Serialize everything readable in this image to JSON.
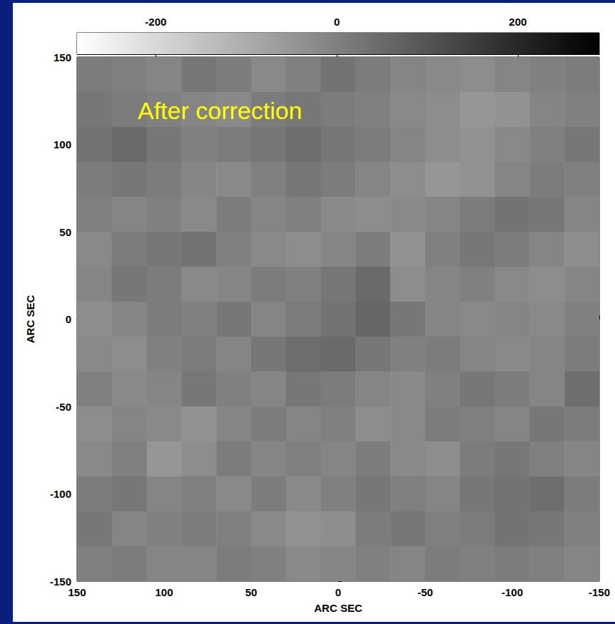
{
  "chart_data": {
    "type": "heatmap",
    "annotation": "After correction",
    "xlabel": "ARC SEC",
    "ylabel": "ARC SEC",
    "xlim": [
      150,
      -150
    ],
    "ylim": [
      -150,
      150
    ],
    "xticks": [
      150,
      100,
      50,
      0,
      -50,
      -100,
      -150
    ],
    "yticks": [
      -150,
      -100,
      -50,
      0,
      50,
      100,
      150
    ],
    "grid": false,
    "x": [
      140,
      120,
      100,
      80,
      60,
      40,
      20,
      0,
      -20,
      -40,
      -60,
      -80,
      -100,
      -120,
      -140
    ],
    "y": [
      140,
      120,
      100,
      80,
      60,
      40,
      20,
      0,
      -20,
      -40,
      -60,
      -80,
      -100,
      -120,
      -140
    ],
    "cells": [
      [
        10,
        0,
        -10,
        20,
        10,
        -20,
        0,
        30,
        10,
        -10,
        -20,
        -30,
        -10,
        0,
        10
      ],
      [
        20,
        10,
        0,
        -10,
        -20,
        10,
        20,
        10,
        0,
        -20,
        -30,
        -50,
        -40,
        -10,
        0
      ],
      [
        30,
        50,
        20,
        0,
        10,
        20,
        40,
        20,
        10,
        -10,
        -30,
        -40,
        -20,
        0,
        20
      ],
      [
        10,
        20,
        10,
        -10,
        -20,
        0,
        20,
        10,
        -10,
        -30,
        -50,
        -40,
        -10,
        10,
        0
      ],
      [
        0,
        -10,
        0,
        -20,
        10,
        -10,
        0,
        -20,
        -30,
        -20,
        -10,
        10,
        30,
        20,
        -10
      ],
      [
        -20,
        10,
        20,
        30,
        0,
        -20,
        -30,
        -10,
        10,
        -40,
        0,
        20,
        10,
        -10,
        -30
      ],
      [
        -10,
        20,
        10,
        -20,
        -10,
        10,
        0,
        20,
        50,
        -30,
        -10,
        0,
        -20,
        -30,
        -10
      ],
      [
        -30,
        -10,
        10,
        0,
        20,
        -10,
        10,
        30,
        60,
        20,
        -10,
        -20,
        -10,
        -20,
        0
      ],
      [
        -20,
        -30,
        0,
        10,
        -10,
        20,
        40,
        50,
        20,
        0,
        10,
        -10,
        -20,
        -10,
        10
      ],
      [
        0,
        -20,
        -10,
        20,
        0,
        -10,
        20,
        10,
        -10,
        -20,
        0,
        20,
        10,
        -10,
        40
      ],
      [
        -30,
        -10,
        -20,
        -40,
        -10,
        10,
        -10,
        0,
        -30,
        -20,
        10,
        0,
        -10,
        20,
        10
      ],
      [
        -20,
        0,
        -50,
        -30,
        10,
        -10,
        0,
        -10,
        10,
        -20,
        -30,
        10,
        20,
        0,
        -10
      ],
      [
        10,
        20,
        -10,
        0,
        -20,
        10,
        -20,
        0,
        20,
        0,
        -10,
        20,
        30,
        40,
        10
      ],
      [
        20,
        -10,
        0,
        10,
        0,
        -20,
        -40,
        -30,
        10,
        20,
        0,
        10,
        30,
        20,
        0
      ],
      [
        0,
        10,
        -10,
        -10,
        10,
        0,
        -20,
        -10,
        0,
        -10,
        10,
        0,
        10,
        0,
        -10
      ]
    ],
    "colorbar_range": [
      -287,
      290
    ],
    "colorbar_ticks": [
      -200,
      0,
      200
    ]
  }
}
